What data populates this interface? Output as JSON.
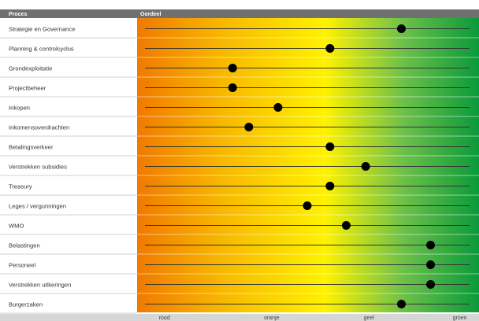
{
  "header": {
    "process_label": "Proces",
    "judgement_label": "Oordeel"
  },
  "colors": {
    "header_bg": "#707070",
    "footer_bg": "#d6d6d6",
    "row_divider": "#d0d0d0",
    "gradient": [
      "#f07a00",
      "#f8b800",
      "#fff200",
      "#6cc04a",
      "#0a9a3a"
    ],
    "dot": "#000000"
  },
  "chart_data": {
    "type": "scatter",
    "xlim": [
      0,
      100
    ],
    "scale_labels": [
      {
        "label": "rood",
        "x": 6
      },
      {
        "label": "oranje",
        "x": 39
      },
      {
        "label": "geel",
        "x": 69
      },
      {
        "label": "groen",
        "x": 97
      }
    ],
    "categories": [
      "Strategie en Governance",
      "Planning & controlcyclus",
      "Grondexploitatie",
      "Projectbeheer",
      "Inkopen",
      "Inkomensoverdrachten",
      "Betalingsverkeer",
      "Verstrekken subsidies",
      "Treasury",
      "Leges / vergunningen",
      "WMO",
      "Belastingen",
      "Personeel",
      "Verstrekken uitkeringen",
      "Burgerzaken"
    ],
    "values": [
      79,
      57,
      27,
      27,
      41,
      32,
      57,
      68,
      57,
      50,
      62,
      88,
      88,
      88,
      79
    ]
  }
}
